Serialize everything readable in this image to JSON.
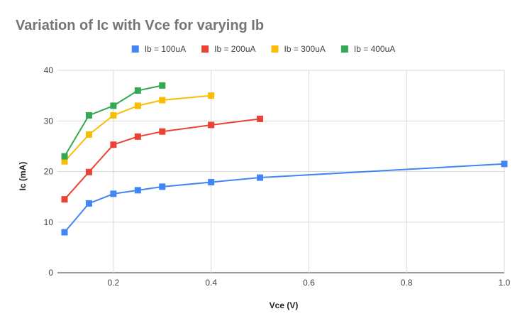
{
  "chart_data": {
    "type": "line",
    "title": "Variation of Ic with Vce for varying Ib",
    "xlabel": "Vce (V)",
    "ylabel": "Ic (mA)",
    "xlim": [
      0.1,
      1.0
    ],
    "ylim": [
      0,
      40
    ],
    "x_ticks": [
      0.2,
      0.4,
      0.6,
      0.8,
      1.0
    ],
    "x_tick_labels": [
      "0.2",
      "0.4",
      "0.6",
      "0.8",
      "1.0"
    ],
    "y_ticks": [
      0,
      10,
      20,
      30,
      40
    ],
    "y_tick_labels": [
      "0",
      "10",
      "20",
      "30",
      "40"
    ],
    "grid": true,
    "legend_position": "top",
    "marker": "square",
    "series": [
      {
        "name": "Ib = 100uA",
        "color": "#4285f4",
        "points": [
          [
            0.1,
            8.0
          ],
          [
            0.15,
            13.7
          ],
          [
            0.2,
            15.6
          ],
          [
            0.25,
            16.3
          ],
          [
            0.3,
            17.0
          ],
          [
            0.4,
            17.9
          ],
          [
            0.5,
            18.8
          ],
          [
            1.0,
            21.5
          ]
        ]
      },
      {
        "name": "Ib = 200uA",
        "color": "#ea4335",
        "points": [
          [
            0.1,
            14.5
          ],
          [
            0.15,
            19.9
          ],
          [
            0.2,
            25.3
          ],
          [
            0.25,
            26.9
          ],
          [
            0.3,
            27.9
          ],
          [
            0.4,
            29.2
          ],
          [
            0.5,
            30.4
          ]
        ]
      },
      {
        "name": "Ib = 300uA",
        "color": "#fbbc04",
        "points": [
          [
            0.1,
            22.0
          ],
          [
            0.15,
            27.3
          ],
          [
            0.2,
            31.1
          ],
          [
            0.25,
            33.0
          ],
          [
            0.3,
            34.1
          ],
          [
            0.4,
            35.0
          ]
        ]
      },
      {
        "name": "Ib = 400uA",
        "color": "#34a853",
        "points": [
          [
            0.1,
            23.0
          ],
          [
            0.15,
            31.1
          ],
          [
            0.2,
            33.0
          ],
          [
            0.25,
            36.0
          ],
          [
            0.3,
            37.0
          ]
        ]
      }
    ]
  }
}
